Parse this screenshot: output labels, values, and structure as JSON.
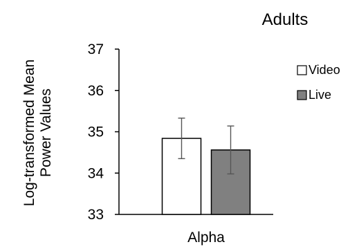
{
  "chart_data": {
    "type": "bar",
    "title": "Adults",
    "ylabel": "Log-transformed Mean Power Values",
    "ylabel_lines": [
      "Log-transformed Mean",
      "Power Values"
    ],
    "xlabel": "",
    "categories": [
      "Alpha"
    ],
    "ylim": [
      33,
      37
    ],
    "yticks": [
      33,
      34,
      35,
      36,
      37
    ],
    "grid": false,
    "legend": "right",
    "series": [
      {
        "name": "Video",
        "values": [
          34.84
        ],
        "error": [
          0.49
        ],
        "color": "#ffffff"
      },
      {
        "name": "Live",
        "values": [
          34.56
        ],
        "error": [
          0.58
        ],
        "color": "#808080"
      }
    ]
  }
}
